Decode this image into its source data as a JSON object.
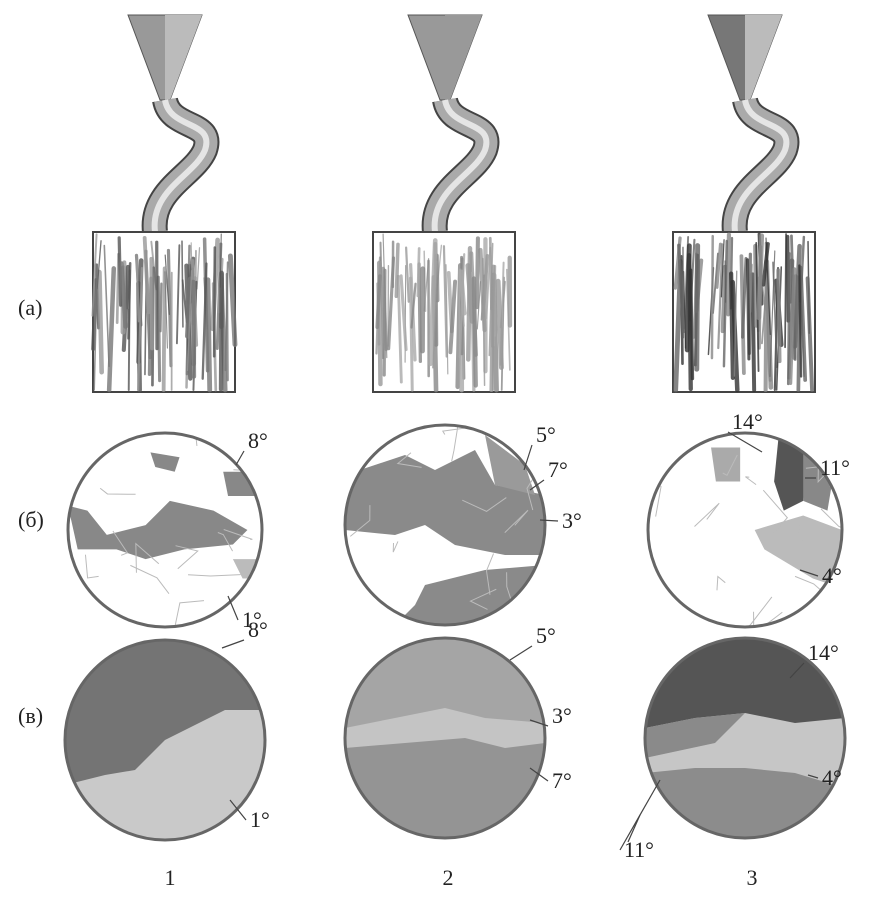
{
  "rows": [
    {
      "label": "(а)"
    },
    {
      "label": "(б)"
    },
    {
      "label": "(в)"
    }
  ],
  "columns": [
    {
      "label": "1"
    },
    {
      "label": "2"
    },
    {
      "label": "3"
    }
  ],
  "row_b_annotations": [
    [
      "8°",
      "1°"
    ],
    [
      "5°",
      "7°",
      "3°"
    ],
    [
      "14°",
      "11°",
      "4°"
    ]
  ],
  "row_c_annotations": [
    [
      "8°",
      "1°"
    ],
    [
      "5°",
      "3°",
      "7°"
    ],
    [
      "14°",
      "4°",
      "11°"
    ]
  ]
}
